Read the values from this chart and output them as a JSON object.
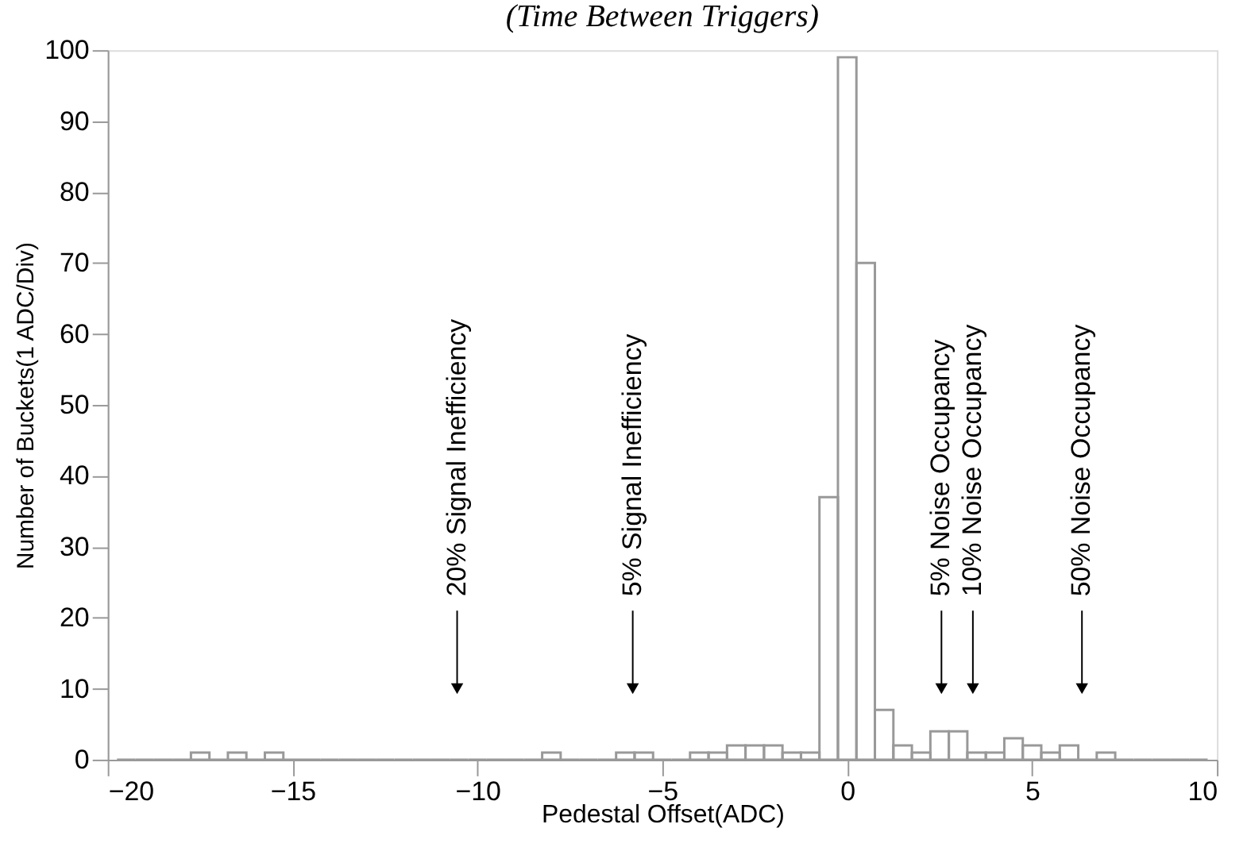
{
  "chart_data": {
    "type": "histogram",
    "title": "(Time Between Triggers)",
    "xlabel": "Pedestal Offset(ADC)",
    "ylabel": "Number of Buckets(1 ADC/Div)",
    "bins": [
      -19.75,
      -19.25,
      -18.75,
      -18.25,
      -17.75,
      -17.25,
      -16.75,
      -16.25,
      -15.75,
      -15.25,
      -14.75,
      -14.25,
      -13.75,
      -13.25,
      -12.75,
      -12.25,
      -11.75,
      -11.25,
      -10.75,
      -10.25,
      -9.75,
      -9.25,
      -8.75,
      -8.25,
      -7.75,
      -7.25,
      -6.75,
      -6.25,
      -5.75,
      -5.25,
      -4.75,
      -4.25,
      -3.75,
      -3.25,
      -2.75,
      -2.25,
      -1.75,
      -1.25,
      -0.75,
      -0.25,
      0.25,
      0.75,
      1.25,
      1.75,
      2.25,
      2.75,
      3.25,
      3.75,
      4.25,
      4.75,
      5.25,
      5.75,
      6.25,
      6.75,
      7.25,
      7.75,
      8.25,
      8.75,
      9.25,
      9.75
    ],
    "values": [
      0,
      0,
      0,
      0,
      1,
      0,
      1,
      0,
      1,
      0,
      0,
      0,
      0,
      0,
      0,
      0,
      0,
      0,
      0,
      0,
      0,
      0,
      0,
      1,
      0,
      0,
      0,
      1,
      1,
      0,
      0,
      1,
      1,
      2,
      2,
      2,
      1,
      1,
      37,
      99,
      70,
      7,
      2,
      1,
      4,
      4,
      1,
      1,
      3,
      2,
      1,
      2,
      0,
      1,
      0,
      0,
      0,
      0,
      0
    ],
    "color": "#999999",
    "xlim": [
      -20,
      10
    ],
    "xticks": [
      -20,
      -15,
      -10,
      -5,
      0,
      5,
      10
    ],
    "ylim": [
      0,
      100
    ],
    "yticks": [
      0,
      10,
      20,
      30,
      40,
      50,
      60,
      70,
      80,
      90,
      100
    ],
    "grid": false,
    "annotations": [
      {
        "text": "20%  Signal Inefficiency",
        "x": -10.55,
        "y": 10
      },
      {
        "text": "5% Signal Inefficiency",
        "x": -5.8,
        "y": 10
      },
      {
        "text": "5% Noise Occupancy",
        "x": 2.55,
        "y": 10
      },
      {
        "text": "10% Noise Occupancy",
        "x": 3.4,
        "y": 10
      },
      {
        "text": "50% Noise Occupancy",
        "x": 6.35,
        "y": 10
      }
    ]
  }
}
